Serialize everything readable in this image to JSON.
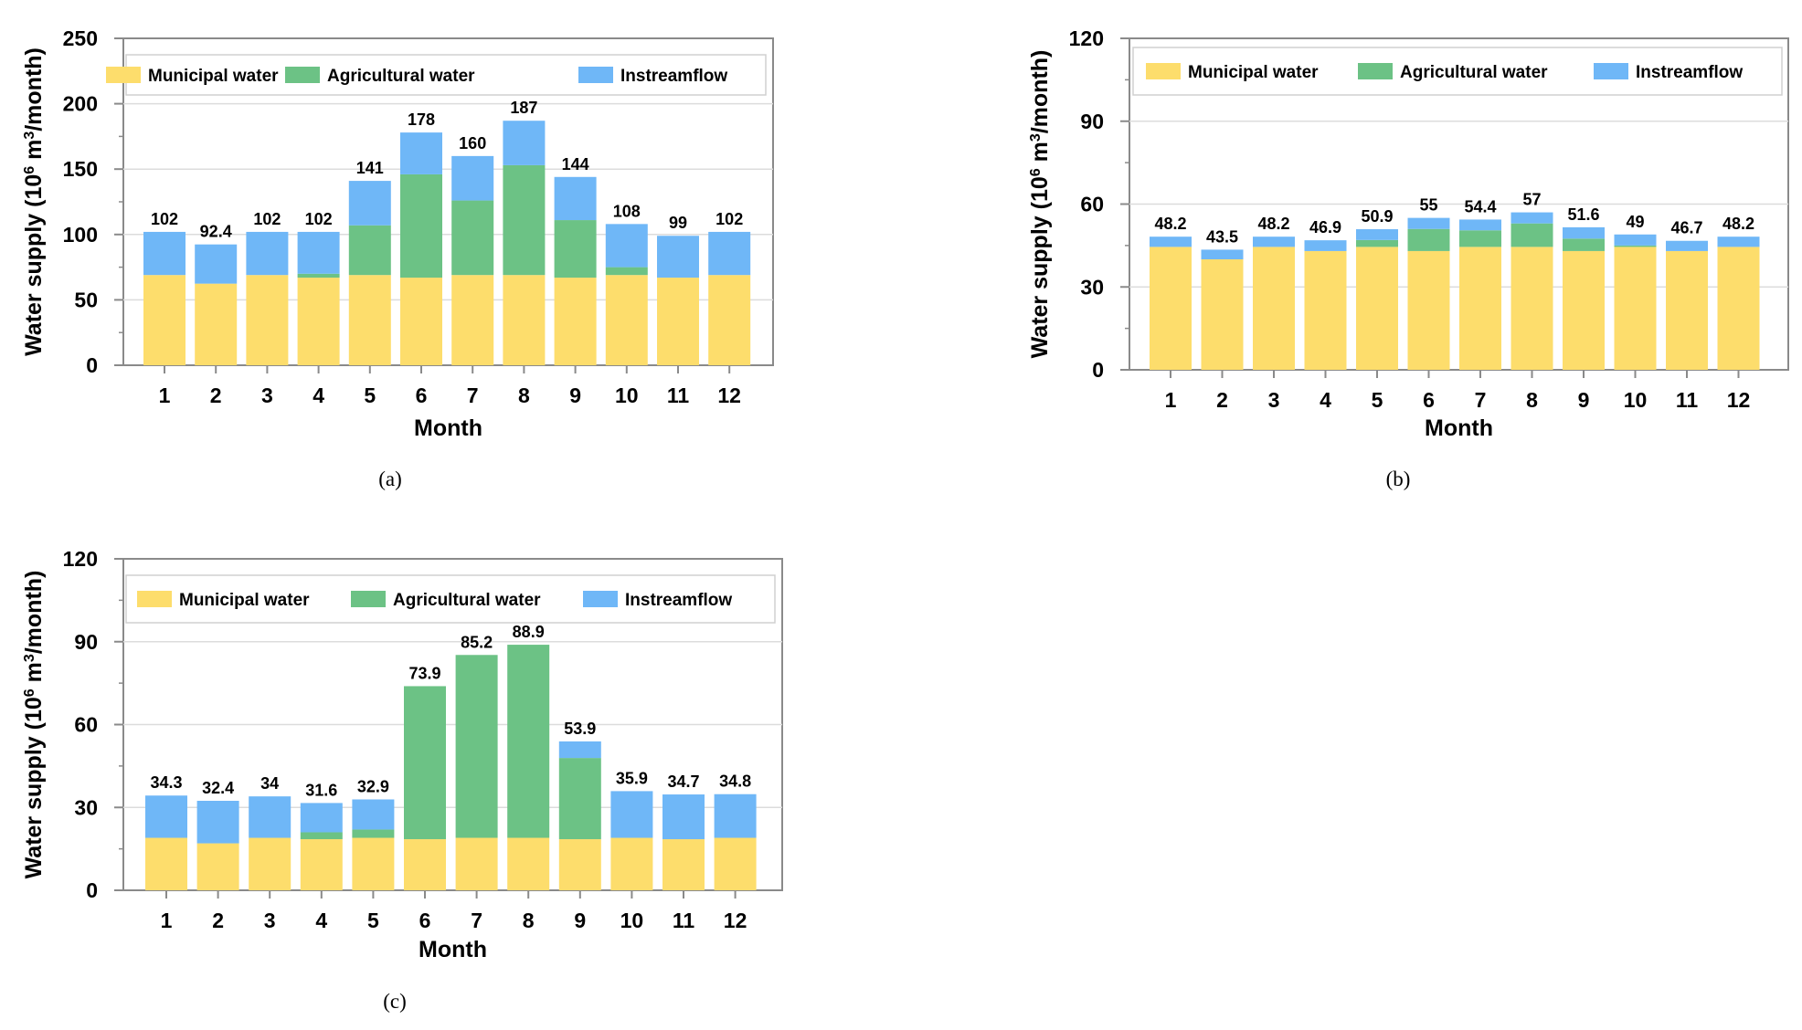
{
  "colors": {
    "municipal": "#FDDD6C",
    "agricultural": "#6CC285",
    "instreamflow": "#6FB7F7",
    "grid": "#dcdcdc",
    "axis": "#8a8a8a"
  },
  "legend": {
    "municipal": "Municipal water",
    "agricultural": "Agricultural water",
    "instreamflow": "Instreamflow"
  },
  "chart_data": [
    {
      "type": "bar",
      "stacked": true,
      "caption": "(a)",
      "xlabel": "Month",
      "ylabel_main": "Water supply (10",
      "ylabel_sup": "6",
      "ylabel_mid": " m",
      "ylabel_sup2": "3",
      "ylabel_end": "/month)",
      "ylim": [
        0,
        250
      ],
      "yticks": [
        "0",
        "50",
        "100",
        "150",
        "200",
        "250"
      ],
      "categories": [
        "1",
        "2",
        "3",
        "4",
        "5",
        "6",
        "7",
        "8",
        "9",
        "10",
        "11",
        "12"
      ],
      "series": [
        {
          "name": "Municipal water",
          "values": [
            69,
            62.4,
            69,
            67,
            69,
            67,
            69,
            69,
            67,
            69,
            67,
            69
          ]
        },
        {
          "name": "Agricultural water",
          "values": [
            0,
            0,
            0,
            3,
            38,
            79,
            57,
            84,
            44,
            6,
            0,
            0
          ]
        },
        {
          "name": "Instreamflow",
          "values": [
            33,
            30,
            33,
            32,
            34,
            32,
            34,
            34,
            33,
            33,
            32,
            33
          ]
        }
      ],
      "total_labels": [
        "102",
        "92.4",
        "102",
        "102",
        "141",
        "178",
        "160",
        "187",
        "144",
        "108",
        "99",
        "102"
      ],
      "legend_position": "top"
    },
    {
      "type": "bar",
      "stacked": true,
      "caption": "(b)",
      "xlabel": "Month",
      "ylabel_main": "Water supply (10",
      "ylabel_sup": "6",
      "ylabel_mid": " m",
      "ylabel_sup2": "3",
      "ylabel_end": "/month)",
      "ylim": [
        0,
        120
      ],
      "yticks": [
        "0",
        "30",
        "60",
        "90",
        "120"
      ],
      "categories": [
        "1",
        "2",
        "3",
        "4",
        "5",
        "6",
        "7",
        "8",
        "9",
        "10",
        "11",
        "12"
      ],
      "series": [
        {
          "name": "Municipal water",
          "values": [
            44.5,
            40,
            44.5,
            43,
            44.5,
            43,
            44.5,
            44.5,
            43,
            44.5,
            43,
            44.5
          ]
        },
        {
          "name": "Agricultural water",
          "values": [
            0,
            0,
            0,
            0,
            2.5,
            8,
            6,
            8.5,
            4.5,
            0.5,
            0,
            0
          ]
        },
        {
          "name": "Instreamflow",
          "values": [
            3.7,
            3.5,
            3.7,
            3.9,
            3.9,
            4,
            3.9,
            4,
            4.1,
            4,
            3.7,
            3.7
          ]
        }
      ],
      "total_labels": [
        "48.2",
        "43.5",
        "48.2",
        "46.9",
        "50.9",
        "55",
        "54.4",
        "57",
        "51.6",
        "49",
        "46.7",
        "48.2"
      ],
      "legend_position": "top"
    },
    {
      "type": "bar",
      "stacked": true,
      "caption": "(c)",
      "xlabel": "Month",
      "ylabel_main": "Water supply (10",
      "ylabel_sup": "6",
      "ylabel_mid": " m",
      "ylabel_sup2": "3",
      "ylabel_end": "/month)",
      "ylim": [
        0,
        120
      ],
      "yticks": [
        "0",
        "30",
        "60",
        "90",
        "120"
      ],
      "categories": [
        "1",
        "2",
        "3",
        "4",
        "5",
        "6",
        "7",
        "8",
        "9",
        "10",
        "11",
        "12"
      ],
      "series": [
        {
          "name": "Municipal water",
          "values": [
            19,
            17,
            19,
            18.5,
            19,
            18.5,
            19,
            19,
            18.5,
            19,
            18.5,
            19
          ]
        },
        {
          "name": "Agricultural water",
          "values": [
            0,
            0,
            0,
            2.5,
            3,
            55.4,
            66.2,
            69.9,
            29.4,
            0,
            0,
            0
          ]
        },
        {
          "name": "Instreamflow",
          "values": [
            15.3,
            15.4,
            15,
            10.6,
            10.9,
            0,
            0,
            0,
            6,
            16.9,
            16.2,
            15.8
          ]
        }
      ],
      "total_labels": [
        "34.3",
        "32.4",
        "34",
        "31.6",
        "32.9",
        "73.9",
        "85.2",
        "88.9",
        "53.9",
        "35.9",
        "34.7",
        "34.8"
      ],
      "legend_position": "top"
    }
  ]
}
